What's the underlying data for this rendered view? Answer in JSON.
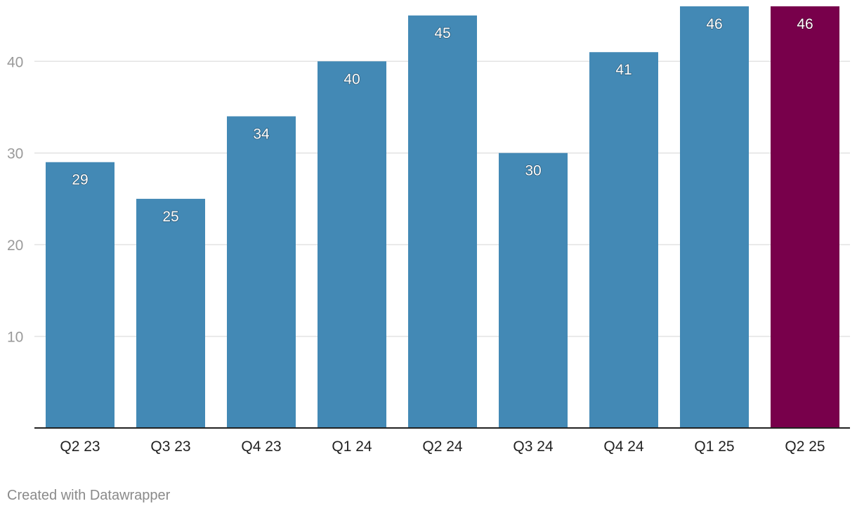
{
  "chart_data": {
    "type": "bar",
    "title": "",
    "xlabel": "",
    "ylabel": "",
    "categories": [
      "Q2 23",
      "Q3 23",
      "Q4 23",
      "Q1 24",
      "Q2 24",
      "Q3 24",
      "Q4 24",
      "Q1 25",
      "Q2 25"
    ],
    "values": [
      29,
      25,
      34,
      40,
      45,
      30,
      41,
      46,
      46
    ],
    "ylim": [
      0,
      46
    ],
    "yticks": [
      10,
      20,
      30,
      40
    ],
    "grid": true,
    "colors": {
      "default": "#4389b5",
      "highlight": "#78004b",
      "highlight_category": "Q2 25"
    }
  },
  "footer": {
    "credit": "Created with Datawrapper"
  }
}
